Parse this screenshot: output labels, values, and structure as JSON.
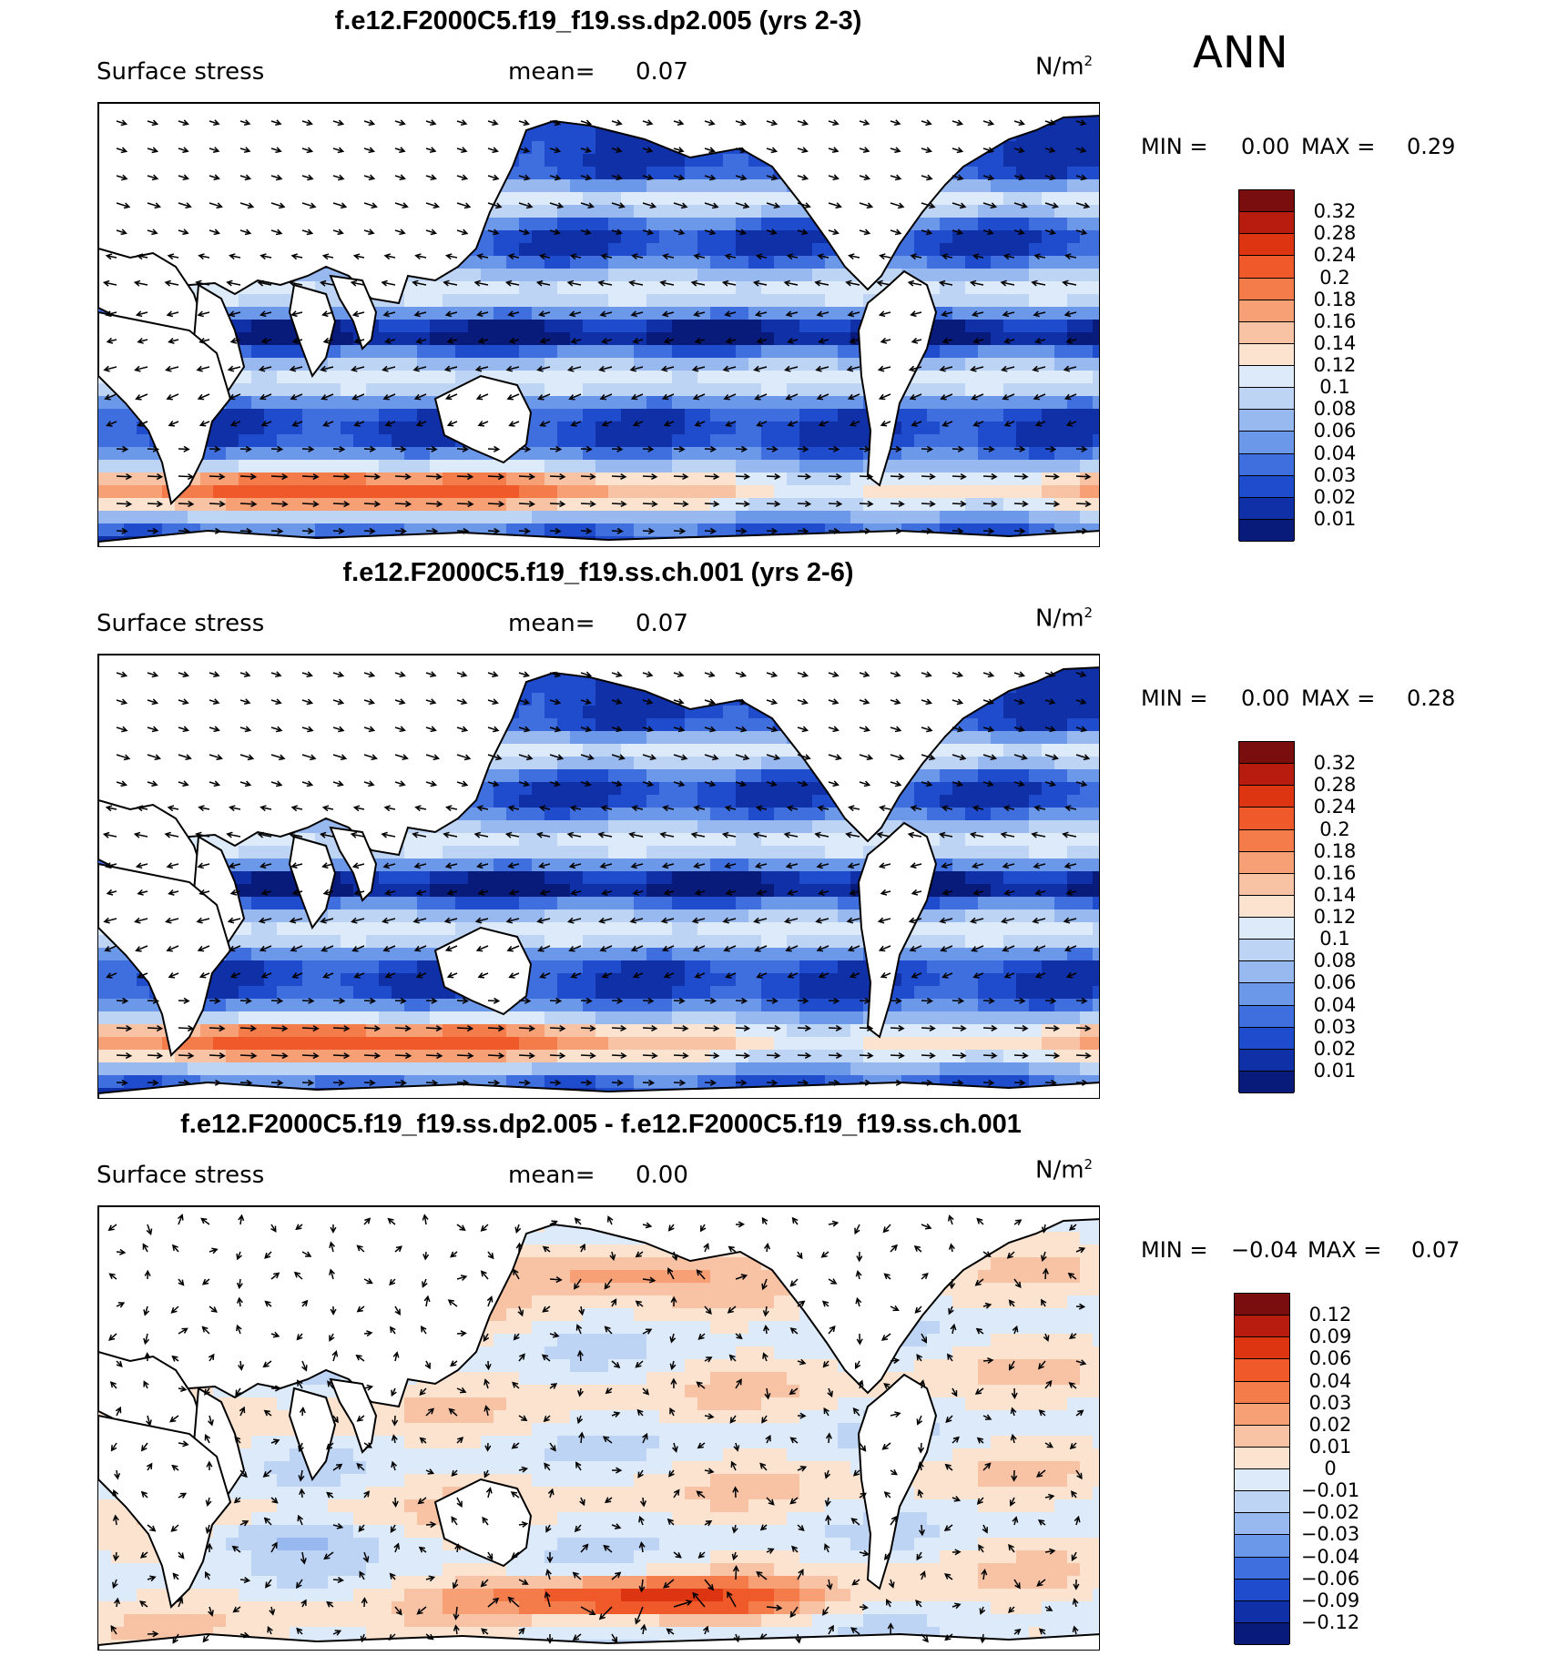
{
  "season": "ANN",
  "units": {
    "base": "N/m",
    "exp": "2"
  },
  "panels": [
    {
      "title": "f.e12.F2000C5.f19_f19.ss.dp2.005 (yrs 2-3)",
      "variable": "Surface stress",
      "mean_label": "mean=",
      "mean_value": "0.07",
      "min_label": "MIN =",
      "min_value": "0.00",
      "max_label": "MAX =",
      "max_value": "0.29",
      "field": "stress",
      "colorbar": {
        "labels": [
          "0.32",
          "0.28",
          "0.24",
          "0.2",
          "0.18",
          "0.16",
          "0.14",
          "0.12",
          "0.1",
          "0.08",
          "0.06",
          "0.04",
          "0.03",
          "0.02",
          "0.01"
        ],
        "colors": [
          "#7a0d0d",
          "#b81c0e",
          "#dd3412",
          "#f0592a",
          "#f47c4a",
          "#f79f75",
          "#f8c3a4",
          "#fbe3cf",
          "#dceafa",
          "#bed4f5",
          "#98b9f0",
          "#6c98ea",
          "#3f6fdf",
          "#1e4ccc",
          "#0f30a6",
          "#081a7a"
        ]
      }
    },
    {
      "title": "f.e12.F2000C5.f19_f19.ss.ch.001 (yrs 2-6)",
      "variable": "Surface stress",
      "mean_label": "mean=",
      "mean_value": "0.07",
      "min_label": "MIN =",
      "min_value": "0.00",
      "max_label": "MAX =",
      "max_value": "0.28",
      "field": "stress",
      "colorbar": {
        "labels": [
          "0.32",
          "0.28",
          "0.24",
          "0.2",
          "0.18",
          "0.16",
          "0.14",
          "0.12",
          "0.1",
          "0.08",
          "0.06",
          "0.04",
          "0.03",
          "0.02",
          "0.01"
        ],
        "colors": [
          "#7a0d0d",
          "#b81c0e",
          "#dd3412",
          "#f0592a",
          "#f47c4a",
          "#f79f75",
          "#f8c3a4",
          "#fbe3cf",
          "#dceafa",
          "#bed4f5",
          "#98b9f0",
          "#6c98ea",
          "#3f6fdf",
          "#1e4ccc",
          "#0f30a6",
          "#081a7a"
        ]
      }
    },
    {
      "title": "f.e12.F2000C5.f19_f19.ss.dp2.005 - f.e12.F2000C5.f19_f19.ss.ch.001",
      "variable": "Surface stress",
      "mean_label": "mean=",
      "mean_value": "0.00",
      "min_label": "MIN =",
      "min_value": "−0.04",
      "max_label": "MAX =",
      "max_value": "0.07",
      "field": "diff",
      "colorbar": {
        "labels": [
          "0.12",
          "0.09",
          "0.06",
          "0.04",
          "0.03",
          "0.02",
          "0.01",
          "0",
          "−0.01",
          "−0.02",
          "−0.03",
          "−0.04",
          "−0.06",
          "−0.09",
          "−0.12"
        ],
        "colors": [
          "#7a0d0d",
          "#b81c0e",
          "#dd3412",
          "#f0592a",
          "#f47c4a",
          "#f79f75",
          "#f8c3a4",
          "#fbe3cf",
          "#dceafa",
          "#bed4f5",
          "#98b9f0",
          "#6c98ea",
          "#3f6fdf",
          "#1e4ccc",
          "#0f30a6",
          "#081a7a"
        ]
      }
    }
  ]
}
